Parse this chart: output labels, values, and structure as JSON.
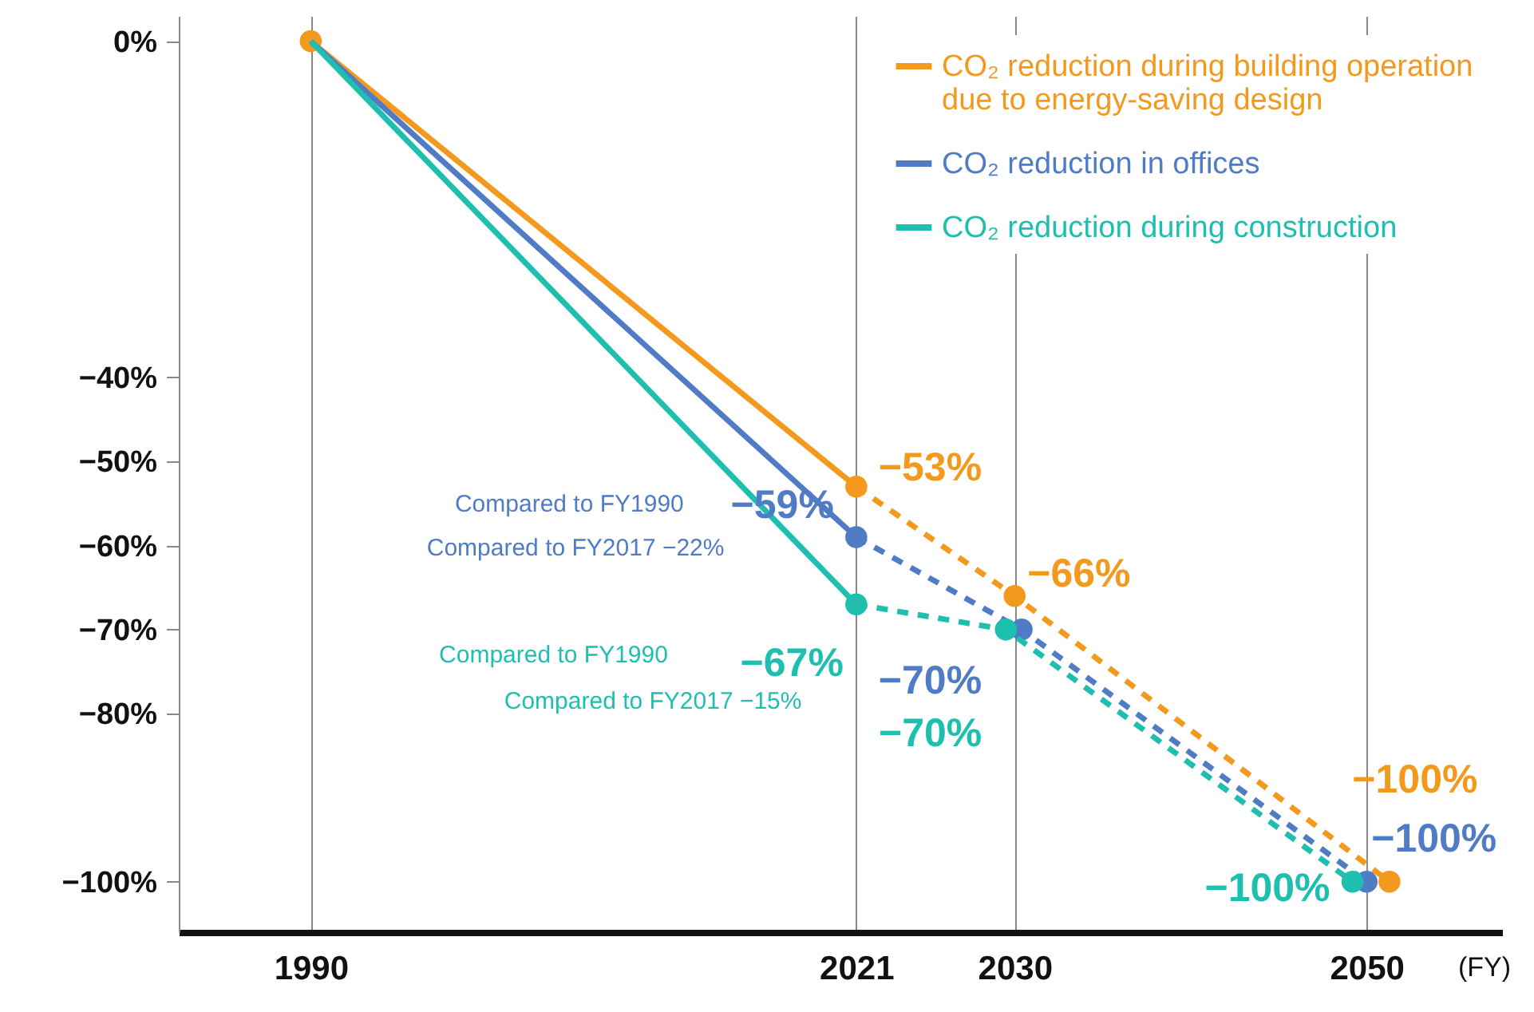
{
  "chart_data": {
    "type": "line",
    "xlabel": "(FY)",
    "xlim": [
      1982.5,
      2057.7
    ],
    "xticks": [
      1990,
      2021,
      2030,
      2050
    ],
    "ylim": [
      -106,
      3
    ],
    "yticks": [
      {
        "value": 0,
        "label": "0%"
      },
      {
        "value": -40,
        "label": "−40%"
      },
      {
        "value": -50,
        "label": "−50%"
      },
      {
        "value": -60,
        "label": "−60%"
      },
      {
        "value": -70,
        "label": "−70%"
      },
      {
        "value": -80,
        "label": "−80%"
      },
      {
        "value": -100,
        "label": "−100%"
      }
    ],
    "grid": "x",
    "legend": "top right",
    "marker": "circle",
    "series": [
      {
        "name": "CO₂ reduction during building operation due to energy-saving design",
        "color": "#f39a1e",
        "x": [
          1990,
          2021
        ],
        "values": [
          0,
          -53
        ],
        "line_style": "solid"
      },
      {
        "color": "#f39a1e",
        "x": [
          2021,
          2030,
          2051.3
        ],
        "values": [
          -53,
          -66,
          -100
        ],
        "line_style": "dashed",
        "value_labels": [
          "−53%",
          "−66%",
          "−100%"
        ]
      },
      {
        "name": "CO₂ reduction in offices",
        "color": "#4f7cc4",
        "x": [
          1990,
          2021
        ],
        "values": [
          0,
          -59
        ],
        "line_style": "solid"
      },
      {
        "color": "#4f7cc4",
        "x": [
          2021,
          2030.4,
          2050
        ],
        "values": [
          -59,
          -70,
          -100
        ],
        "line_style": "dashed",
        "value_labels": [
          "−59%",
          "−70%",
          "−100%"
        ]
      },
      {
        "name": "CO₂ reduction during construction",
        "color": "#1fbfb0",
        "x": [
          1990,
          2021
        ],
        "values": [
          0,
          -67
        ],
        "line_style": "solid"
      },
      {
        "color": "#1fbfb0",
        "x": [
          2021,
          2029.5,
          2049.2
        ],
        "values": [
          -67,
          -70,
          -100
        ],
        "line_style": "dashed",
        "value_labels": [
          "−67%",
          "−70%",
          "−100%"
        ]
      }
    ],
    "annotations": [
      "Compared to FY1990",
      "Compared to FY2017 −22%",
      "Compared to FY1990",
      "Compared to FY2017 −15%"
    ]
  }
}
